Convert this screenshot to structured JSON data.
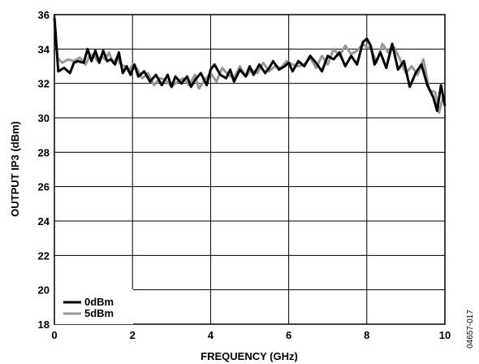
{
  "chart_data": {
    "type": "line",
    "title": "",
    "xlabel": "FREQUENCY (GHz)",
    "ylabel": "OUTPUT IP3 (dBm)",
    "xlim": [
      0,
      10
    ],
    "ylim": [
      18,
      36
    ],
    "x_ticks": [
      "0",
      "2",
      "4",
      "6",
      "8",
      "10"
    ],
    "y_ticks": [
      "18",
      "20",
      "22",
      "24",
      "26",
      "28",
      "30",
      "32",
      "34",
      "36"
    ],
    "x_tick_values": [
      0,
      2,
      4,
      6,
      8,
      10
    ],
    "y_tick_values": [
      18,
      20,
      22,
      24,
      26,
      28,
      30,
      32,
      34,
      36
    ],
    "grid": true,
    "legend_position": "bottom-left",
    "figure_id": "04657-017",
    "series": [
      {
        "name": "0dBm",
        "color": "#000000",
        "x": [
          0.0,
          0.1,
          0.25,
          0.4,
          0.5,
          0.6,
          0.75,
          0.85,
          0.95,
          1.05,
          1.15,
          1.25,
          1.35,
          1.45,
          1.55,
          1.65,
          1.75,
          1.85,
          1.95,
          2.05,
          2.15,
          2.3,
          2.45,
          2.6,
          2.75,
          2.9,
          3.0,
          3.1,
          3.25,
          3.4,
          3.5,
          3.6,
          3.75,
          3.9,
          4.0,
          4.1,
          4.25,
          4.4,
          4.5,
          4.6,
          4.75,
          4.9,
          5.0,
          5.1,
          5.25,
          5.4,
          5.5,
          5.6,
          5.75,
          5.9,
          6.0,
          6.1,
          6.25,
          6.4,
          6.55,
          6.7,
          6.85,
          7.0,
          7.15,
          7.3,
          7.45,
          7.6,
          7.75,
          7.9,
          8.0,
          8.1,
          8.2,
          8.35,
          8.5,
          8.65,
          8.8,
          8.95,
          9.1,
          9.25,
          9.4,
          9.55,
          9.7,
          9.8,
          9.9,
          10.0
        ],
        "values": [
          35.8,
          32.7,
          32.9,
          32.6,
          33.2,
          33.3,
          33.2,
          34.0,
          33.3,
          33.9,
          33.2,
          33.9,
          33.3,
          33.4,
          33.1,
          33.8,
          32.6,
          33.0,
          32.5,
          33.1,
          32.4,
          32.7,
          32.1,
          32.5,
          31.9,
          32.5,
          31.8,
          32.4,
          32.0,
          32.4,
          31.8,
          32.2,
          32.6,
          31.9,
          32.8,
          33.1,
          32.5,
          32.3,
          32.8,
          32.1,
          32.8,
          32.4,
          33.0,
          32.5,
          33.1,
          32.6,
          32.9,
          33.3,
          32.8,
          33.0,
          33.2,
          32.7,
          33.3,
          33.0,
          33.6,
          33.2,
          32.7,
          33.6,
          33.4,
          33.8,
          33.0,
          33.6,
          33.1,
          34.4,
          34.6,
          34.2,
          33.1,
          33.8,
          32.9,
          34.3,
          32.8,
          33.3,
          31.8,
          32.6,
          33.1,
          31.9,
          31.2,
          30.4,
          31.9,
          30.7
        ]
      },
      {
        "name": "5dBm",
        "color": "#999999",
        "x": [
          0.0,
          0.08,
          0.2,
          0.35,
          0.5,
          0.65,
          0.8,
          0.9,
          1.0,
          1.1,
          1.2,
          1.3,
          1.4,
          1.5,
          1.6,
          1.7,
          1.8,
          1.9,
          2.0,
          2.1,
          2.25,
          2.4,
          2.55,
          2.7,
          2.85,
          3.0,
          3.15,
          3.3,
          3.45,
          3.6,
          3.7,
          3.85,
          4.0,
          4.15,
          4.3,
          4.45,
          4.6,
          4.75,
          4.9,
          5.05,
          5.2,
          5.35,
          5.5,
          5.65,
          5.8,
          5.95,
          6.1,
          6.25,
          6.4,
          6.55,
          6.7,
          6.85,
          7.0,
          7.15,
          7.3,
          7.45,
          7.6,
          7.75,
          7.9,
          8.0,
          8.1,
          8.25,
          8.4,
          8.55,
          8.7,
          8.85,
          9.0,
          9.15,
          9.3,
          9.45,
          9.6,
          9.75,
          9.85,
          9.95,
          10.0
        ],
        "values": [
          36.0,
          33.5,
          33.2,
          33.4,
          33.3,
          33.5,
          33.1,
          33.6,
          33.7,
          33.3,
          33.6,
          33.4,
          33.8,
          33.2,
          33.5,
          33.1,
          33.0,
          32.7,
          33.1,
          32.9,
          32.3,
          32.6,
          31.9,
          32.3,
          32.2,
          31.8,
          32.1,
          32.3,
          31.9,
          32.5,
          31.7,
          32.2,
          32.6,
          32.1,
          32.9,
          32.5,
          32.3,
          33.0,
          32.4,
          32.8,
          32.6,
          33.2,
          32.7,
          33.0,
          32.9,
          33.3,
          33.1,
          33.0,
          33.1,
          33.5,
          32.9,
          33.6,
          33.1,
          34.0,
          33.6,
          34.2,
          33.7,
          33.9,
          34.3,
          34.1,
          34.1,
          33.2,
          34.3,
          33.8,
          34.1,
          33.4,
          32.6,
          33.0,
          32.5,
          33.4,
          31.6,
          31.5,
          30.3,
          31.2,
          30.9
        ]
      }
    ]
  }
}
